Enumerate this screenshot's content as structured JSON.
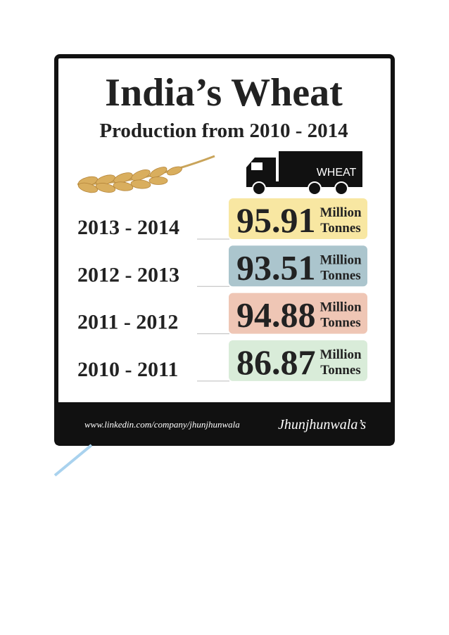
{
  "header": {
    "title": "India’s Wheat",
    "subtitle": "Production from 2010 - 2014"
  },
  "truck_label": "WHEAT",
  "rows": [
    {
      "period": "2013 - 2014",
      "value": "95.91",
      "unit_top": "Million",
      "unit_bottom": "Tonnes",
      "color": "#f8e7a2"
    },
    {
      "period": "2012 - 2013",
      "value": "93.51",
      "unit_top": "Million",
      "unit_bottom": "Tonnes",
      "color": "#abc5cd"
    },
    {
      "period": "2011 - 2012",
      "value": "94.88",
      "unit_top": "Million",
      "unit_bottom": "Tonnes",
      "color": "#efc6b5"
    },
    {
      "period": "2010 - 2011",
      "value": "86.87",
      "unit_top": "Million",
      "unit_bottom": "Tonnes",
      "color": "#d9ecd9"
    }
  ],
  "footer": {
    "url": "www.linkedin.com/company/jhunjhunwala",
    "brand": "Jhunjhunwala’s"
  }
}
